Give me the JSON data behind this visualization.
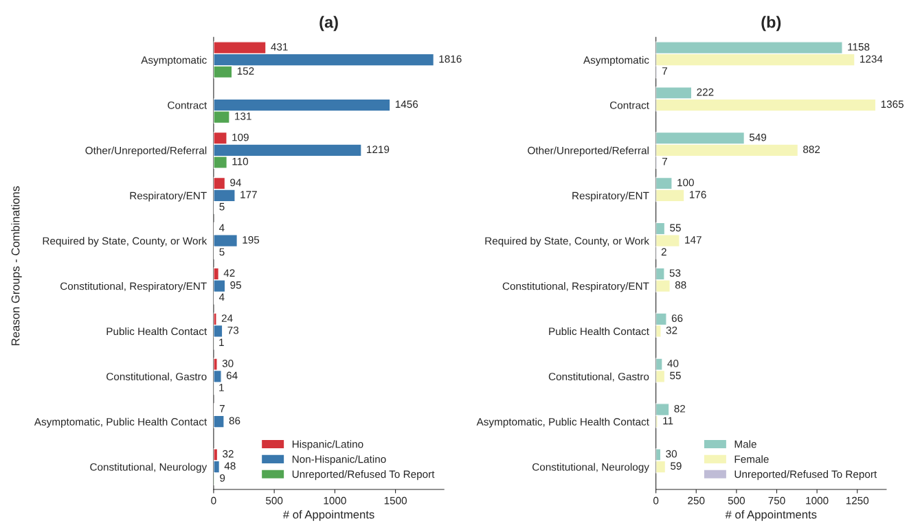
{
  "chart_data": [
    {
      "type": "bar",
      "orientation": "horizontal",
      "title": "(a)",
      "xlabel": "# of Appointments",
      "ylabel": "Reason Groups - Combinations",
      "categories": [
        "Asymptomatic",
        "Contract",
        "Other/Unreported/Referral",
        "Respiratory/ENT",
        "Required by State, County, or Work",
        "Constitutional, Respiratory/ENT",
        "Public Health Contact",
        "Constitutional, Gastro",
        "Asymptomatic, Public Health Contact",
        "Constitutional, Neurology"
      ],
      "series": [
        {
          "name": "Hispanic/Latino",
          "color": "#d3333a",
          "values": [
            431,
            null,
            109,
            94,
            4,
            42,
            24,
            30,
            7,
            32
          ]
        },
        {
          "name": "Non-Hispanic/Latino",
          "color": "#3a78ad",
          "values": [
            1816,
            1456,
            1219,
            177,
            195,
            95,
            73,
            64,
            86,
            48
          ]
        },
        {
          "name": "Unreported/Refused To Report",
          "color": "#52a552",
          "values": [
            152,
            131,
            110,
            5,
            5,
            4,
            1,
            1,
            null,
            9
          ]
        }
      ],
      "xlim": [
        0,
        1900
      ],
      "xticks": [
        0,
        500,
        1000,
        1500
      ],
      "data_labels": true,
      "grid": false,
      "legend": "bottom right"
    },
    {
      "type": "bar",
      "orientation": "horizontal",
      "title": "(b)",
      "xlabel": "# of Appointments",
      "categories": [
        "Asymptomatic",
        "Contract",
        "Other/Unreported/Referral",
        "Respiratory/ENT",
        "Required by State, County, or Work",
        "Constitutional, Respiratory/ENT",
        "Public Health Contact",
        "Constitutional, Gastro",
        "Asymptomatic, Public Health Contact",
        "Constitutional, Neurology"
      ],
      "series": [
        {
          "name": "Male",
          "color": "#91cbc1",
          "values": [
            1158,
            222,
            549,
            100,
            55,
            53,
            66,
            40,
            82,
            30
          ]
        },
        {
          "name": "Female",
          "color": "#f5f5b8",
          "values": [
            1234,
            1365,
            882,
            176,
            147,
            88,
            32,
            55,
            11,
            59
          ]
        },
        {
          "name": "Unreported/Refused To Report",
          "color": "#bfbcd6",
          "values": [
            7,
            null,
            7,
            null,
            2,
            null,
            null,
            null,
            null,
            null
          ]
        }
      ],
      "xlim": [
        0,
        1430
      ],
      "xticks": [
        0,
        250,
        500,
        750,
        1000,
        1250
      ],
      "data_labels": true,
      "grid": false,
      "legend": "bottom right"
    }
  ]
}
